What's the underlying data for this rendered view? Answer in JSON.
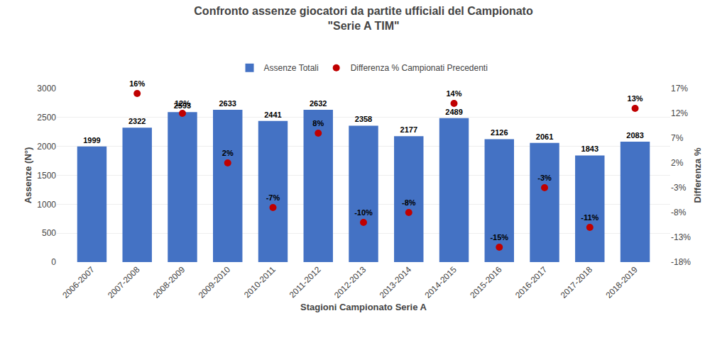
{
  "chart_data": {
    "type": "bar",
    "title": "Confronto assenze giocatori da partite ufficiali del Campionato",
    "subtitle": "\"Serie A TIM\"",
    "xlabel": "Stagioni Campionato Serie A",
    "ylabel": "Assenze (N°)",
    "y2label": "Differenza %",
    "categories": [
      "2006-2007",
      "2007-2008",
      "2008-2009",
      "2009-2010",
      "2010-2011",
      "2011-2012",
      "2012-2013",
      "2013-2014",
      "2014-2015",
      "2015-2016",
      "2016-2017",
      "2017-2018",
      "2018-2019"
    ],
    "series": [
      {
        "name": "Assenze Totali",
        "type": "bar",
        "color": "#4472C4",
        "values": [
          1999,
          2322,
          2593,
          2633,
          2441,
          2632,
          2358,
          2177,
          2489,
          2126,
          2061,
          1843,
          2083
        ]
      },
      {
        "name": "Differenza % Campionati Precedenti",
        "type": "scatter",
        "marker": "circle",
        "color": "#C00000",
        "axis": "y2",
        "values": [
          null,
          16,
          12,
          2,
          -7,
          8,
          -10,
          -8,
          14,
          -15,
          -3,
          -11,
          13
        ],
        "value_labels": [
          null,
          "16%",
          "12%",
          "2%",
          "-7%",
          "8%",
          "-10%",
          "-8%",
          "14%",
          "-15%",
          "-3%",
          "-11%",
          "13%"
        ]
      }
    ],
    "ylim": [
      0,
      3000
    ],
    "yticks": [
      0,
      500,
      1000,
      1500,
      2000,
      2500,
      3000
    ],
    "y2lim": [
      -18,
      17
    ],
    "y2ticks": [
      {
        "value": -18,
        "label": "-18%"
      },
      {
        "value": -13,
        "label": "-13%"
      },
      {
        "value": -8,
        "label": "-8%"
      },
      {
        "value": -3,
        "label": "-3%"
      },
      {
        "value": 2,
        "label": "2%"
      },
      {
        "value": 7,
        "label": "7%"
      },
      {
        "value": 12,
        "label": "12%"
      },
      {
        "value": 17,
        "label": "17%"
      }
    ],
    "grid": true,
    "legend": "top",
    "data_labels": true
  }
}
